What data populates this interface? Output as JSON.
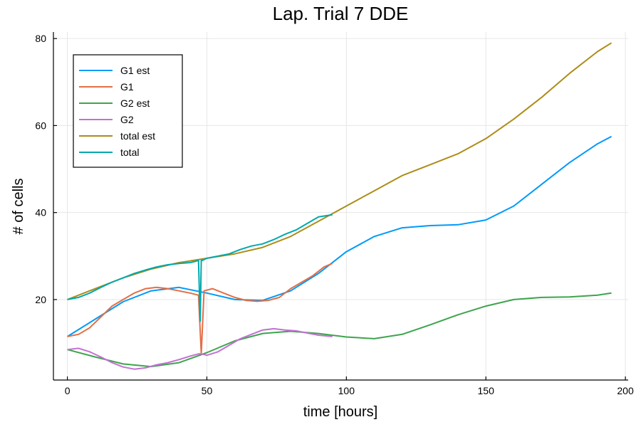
{
  "chart_data": {
    "type": "line",
    "title": "Lap. Trial 7 DDE",
    "xlabel": "time [hours]",
    "ylabel": "# of cells",
    "xlim": [
      -5,
      201
    ],
    "ylim": [
      1.5,
      81.5
    ],
    "xticks": [
      0,
      50,
      100,
      150,
      200
    ],
    "yticks": [
      20,
      40,
      60,
      80
    ],
    "grid": true,
    "legend_position": "top-left",
    "series": [
      {
        "name": "G1 est",
        "color": "#009AFA",
        "x": [
          0,
          10,
          20,
          30,
          40,
          50,
          60,
          70,
          80,
          90,
          100,
          110,
          120,
          130,
          140,
          150,
          160,
          170,
          180,
          190,
          195
        ],
        "y": [
          11.5,
          15.5,
          19.5,
          22.0,
          22.8,
          21.5,
          20.0,
          19.8,
          22.0,
          26.0,
          31.0,
          34.5,
          36.5,
          37.0,
          37.2,
          38.3,
          41.5,
          46.5,
          51.5,
          55.8,
          57.5
        ]
      },
      {
        "name": "G1",
        "color": "#E26F46",
        "x": [
          0,
          4,
          8,
          12,
          16,
          20,
          24,
          28,
          32,
          36,
          40,
          44,
          47,
          48,
          49,
          52,
          56,
          60,
          64,
          68,
          72,
          76,
          80,
          84,
          88,
          92,
          95
        ],
        "y": [
          11.5,
          12.0,
          13.5,
          16.0,
          18.5,
          20.0,
          21.5,
          22.5,
          22.8,
          22.5,
          22.0,
          21.5,
          21.0,
          7.5,
          22.0,
          22.5,
          21.5,
          20.5,
          19.8,
          19.6,
          19.8,
          20.5,
          22.5,
          24.0,
          25.5,
          27.5,
          28.3
        ]
      },
      {
        "name": "G2 est",
        "color": "#3DA44D",
        "x": [
          0,
          10,
          20,
          30,
          40,
          50,
          60,
          70,
          80,
          90,
          100,
          110,
          120,
          130,
          140,
          150,
          160,
          170,
          180,
          190,
          195
        ],
        "y": [
          8.5,
          6.8,
          5.2,
          4.6,
          5.5,
          7.8,
          10.5,
          12.2,
          12.7,
          12.2,
          11.4,
          11.0,
          12.0,
          14.2,
          16.5,
          18.5,
          20.0,
          20.5,
          20.6,
          21.0,
          21.5
        ]
      },
      {
        "name": "G2",
        "color": "#C271D2",
        "x": [
          0,
          4,
          8,
          12,
          16,
          20,
          24,
          28,
          32,
          36,
          40,
          44,
          47,
          48,
          50,
          54,
          58,
          62,
          66,
          70,
          74,
          78,
          82,
          86,
          90,
          95
        ],
        "y": [
          8.5,
          8.8,
          8.0,
          6.8,
          5.5,
          4.5,
          4.0,
          4.3,
          5.0,
          5.5,
          6.2,
          7.0,
          7.5,
          7.5,
          7.2,
          8.0,
          9.5,
          11.0,
          12.0,
          13.0,
          13.3,
          13.0,
          12.8,
          12.3,
          11.8,
          11.5
        ]
      },
      {
        "name": "total est",
        "color": "#AC8D18",
        "x": [
          0,
          10,
          20,
          30,
          40,
          50,
          60,
          70,
          80,
          90,
          100,
          110,
          120,
          130,
          140,
          150,
          160,
          170,
          180,
          190,
          195
        ],
        "y": [
          20.0,
          22.5,
          25.0,
          27.0,
          28.5,
          29.5,
          30.5,
          32.0,
          34.5,
          38.0,
          41.5,
          45.0,
          48.5,
          51.0,
          53.5,
          57.0,
          61.5,
          66.5,
          72.0,
          77.0,
          79.0
        ]
      },
      {
        "name": "total",
        "color": "#00A9AD",
        "x": [
          0,
          4,
          8,
          12,
          16,
          20,
          24,
          28,
          32,
          36,
          40,
          44,
          46,
          47,
          47.6,
          48,
          48.4,
          50,
          54,
          58,
          62,
          66,
          70,
          74,
          78,
          82,
          86,
          90,
          95
        ],
        "y": [
          20.0,
          20.5,
          21.5,
          22.8,
          24.0,
          25.0,
          26.0,
          26.8,
          27.5,
          28.0,
          28.3,
          28.5,
          28.8,
          29.0,
          15.0,
          29.0,
          29.0,
          29.5,
          30.0,
          30.5,
          31.5,
          32.3,
          32.8,
          33.8,
          35.0,
          36.0,
          37.5,
          39.0,
          39.5
        ]
      }
    ]
  }
}
